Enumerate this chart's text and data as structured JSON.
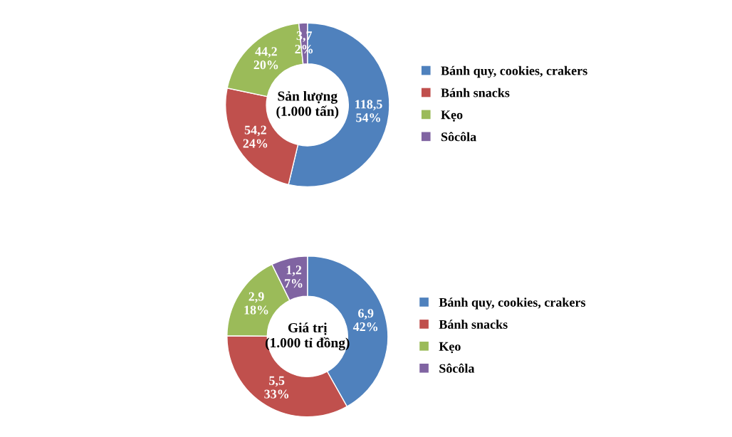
{
  "chart_data": [
    {
      "type": "donut",
      "title": "Sản lượng\n(1.000 tấn)",
      "categories": [
        "Bánh quy, cookies, crakers",
        "Bánh snacks",
        "Kẹo",
        "Sôcôla"
      ],
      "values": [
        118.5,
        54.2,
        44.2,
        3.7
      ],
      "colors": [
        "#4f81bd",
        "#c0504d",
        "#9bbb59",
        "#8064a2"
      ],
      "value_labels": [
        "118,5\n54%",
        "54,2\n24%",
        "44,2\n20%",
        "3,7\n2%"
      ],
      "legend": "right"
    },
    {
      "type": "donut",
      "title": "Giá trị\n(1.000 tỉ đồng)",
      "categories": [
        "Bánh quy, cookies, crakers",
        "Bánh snacks",
        "Kẹo",
        "Sôcôla"
      ],
      "values": [
        6.9,
        5.5,
        2.9,
        1.2
      ],
      "colors": [
        "#4f81bd",
        "#c0504d",
        "#9bbb59",
        "#8064a2"
      ],
      "value_labels": [
        "6,9\n42%",
        "5,5\n33%",
        "2,9\n18%",
        "1,2\n7%"
      ],
      "legend": "right"
    }
  ]
}
